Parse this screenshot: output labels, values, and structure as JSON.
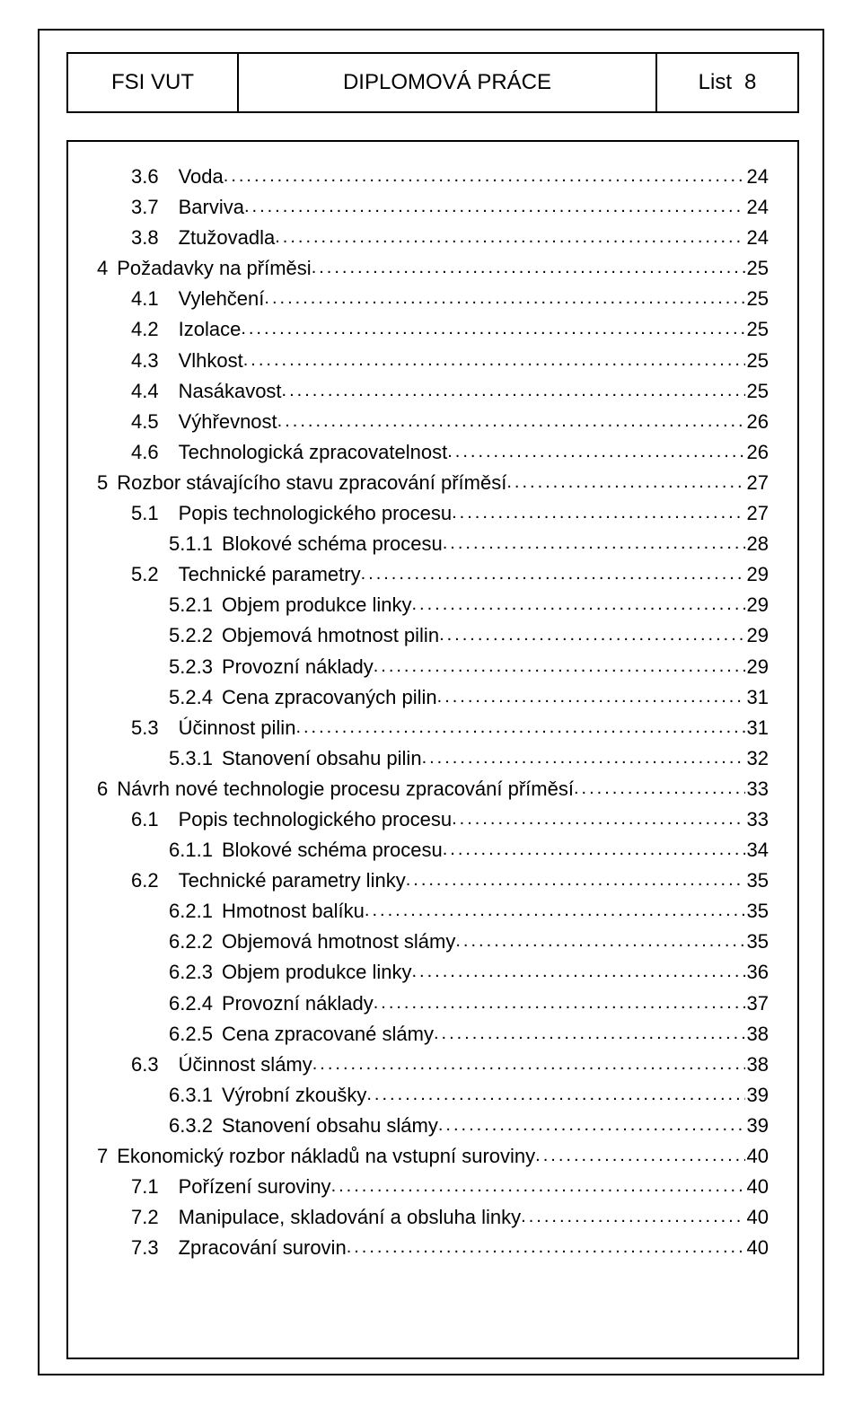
{
  "header": {
    "left": "FSI VUT",
    "middle": "DIPLOMOVÁ PRÁCE",
    "right_label": "List",
    "right_page": "8"
  },
  "toc": [
    {
      "level": 2,
      "num": "3.6",
      "title": "Voda",
      "page": "24"
    },
    {
      "level": 2,
      "num": "3.7",
      "title": "Barviva",
      "page": "24"
    },
    {
      "level": 2,
      "num": "3.8",
      "title": "Ztužovadla",
      "page": "24"
    },
    {
      "level": 1,
      "num": "4",
      "title": "Požadavky na příměsi",
      "page": "25"
    },
    {
      "level": 2,
      "num": "4.1",
      "title": "Vylehčení",
      "page": "25"
    },
    {
      "level": 2,
      "num": "4.2",
      "title": "Izolace",
      "page": "25"
    },
    {
      "level": 2,
      "num": "4.3",
      "title": "Vlhkost",
      "page": "25"
    },
    {
      "level": 2,
      "num": "4.4",
      "title": "Nasákavost",
      "page": "25"
    },
    {
      "level": 2,
      "num": "4.5",
      "title": "Výhřevnost",
      "page": "26"
    },
    {
      "level": 2,
      "num": "4.6",
      "title": "Technologická zpracovatelnost",
      "page": "26"
    },
    {
      "level": 1,
      "num": "5",
      "title": "Rozbor stávajícího stavu zpracování příměsí",
      "page": "27"
    },
    {
      "level": 2,
      "num": "5.1",
      "title": "Popis technologického procesu",
      "page": "27"
    },
    {
      "level": 3,
      "num": "5.1.1",
      "title": "Blokové schéma procesu",
      "page": "28"
    },
    {
      "level": 2,
      "num": "5.2",
      "title": "Technické parametry",
      "page": "29"
    },
    {
      "level": 3,
      "num": "5.2.1",
      "title": "Objem produkce linky",
      "page": "29"
    },
    {
      "level": 3,
      "num": "5.2.2",
      "title": "Objemová hmotnost pilin",
      "page": "29"
    },
    {
      "level": 3,
      "num": "5.2.3",
      "title": "Provozní náklady",
      "page": "29"
    },
    {
      "level": 3,
      "num": "5.2.4",
      "title": "Cena zpracovaných pilin",
      "page": "31"
    },
    {
      "level": 2,
      "num": "5.3",
      "title": "Účinnost pilin",
      "page": "31"
    },
    {
      "level": 3,
      "num": "5.3.1",
      "title": "Stanovení obsahu pilin",
      "page": "32"
    },
    {
      "level": 1,
      "num": "6",
      "title": "Návrh nové technologie procesu zpracování příměsí",
      "page": "33"
    },
    {
      "level": 2,
      "num": "6.1",
      "title": "Popis technologického procesu",
      "page": "33"
    },
    {
      "level": 3,
      "num": "6.1.1",
      "title": "Blokové schéma procesu",
      "page": "34"
    },
    {
      "level": 2,
      "num": "6.2",
      "title": "Technické parametry linky",
      "page": "35"
    },
    {
      "level": 3,
      "num": "6.2.1",
      "title": "Hmotnost balíku",
      "page": "35"
    },
    {
      "level": 3,
      "num": "6.2.2",
      "title": "Objemová hmotnost slámy",
      "page": "35"
    },
    {
      "level": 3,
      "num": "6.2.3",
      "title": "Objem produkce linky",
      "page": "36"
    },
    {
      "level": 3,
      "num": "6.2.4",
      "title": "Provozní náklady",
      "page": "37"
    },
    {
      "level": 3,
      "num": "6.2.5",
      "title": "Cena zpracované slámy",
      "page": "38"
    },
    {
      "level": 2,
      "num": "6.3",
      "title": "Účinnost slámy",
      "page": "38"
    },
    {
      "level": 3,
      "num": "6.3.1",
      "title": "Výrobní zkoušky",
      "page": "39"
    },
    {
      "level": 3,
      "num": "6.3.2",
      "title": "Stanovení obsahu slámy",
      "page": "39"
    },
    {
      "level": 1,
      "num": "7",
      "title": "Ekonomický rozbor nákladů na vstupní suroviny",
      "page": "40"
    },
    {
      "level": 2,
      "num": "7.1",
      "title": "Pořízení suroviny",
      "page": "40"
    },
    {
      "level": 2,
      "num": "7.2",
      "title": "Manipulace, skladování a obsluha linky",
      "page": "40"
    },
    {
      "level": 2,
      "num": "7.3",
      "title": "Zpracování surovin",
      "page": "40"
    }
  ]
}
